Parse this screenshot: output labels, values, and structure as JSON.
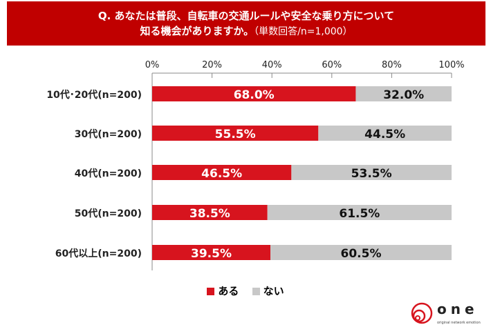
{
  "header": {
    "line1": "Q. あなたは普段、自転車の交通ルールや安全な乗り方について",
    "line2": "知る機会がありますか。",
    "note": "（単数回答/n=1,000）"
  },
  "chart_data": {
    "type": "bar",
    "stacked": true,
    "orientation": "horizontal",
    "categories": [
      "10代･20代(n=200)",
      "30代(n=200)",
      "40代(n=200)",
      "50代(n=200)",
      "60代以上(n=200)"
    ],
    "series": [
      {
        "name": "ある",
        "values": [
          68.0,
          55.5,
          46.5,
          38.5,
          39.5
        ],
        "color": "#d7141e"
      },
      {
        "name": "ない",
        "values": [
          32.0,
          44.5,
          53.5,
          61.5,
          60.5
        ],
        "color": "#c8c8c8"
      }
    ],
    "xticks": [
      "0%",
      "20%",
      "40%",
      "60%",
      "80%",
      "100%"
    ],
    "xlim": [
      0,
      100
    ],
    "legend": "bottom"
  },
  "logo": {
    "text": "one",
    "tagline": "original network emotion"
  }
}
